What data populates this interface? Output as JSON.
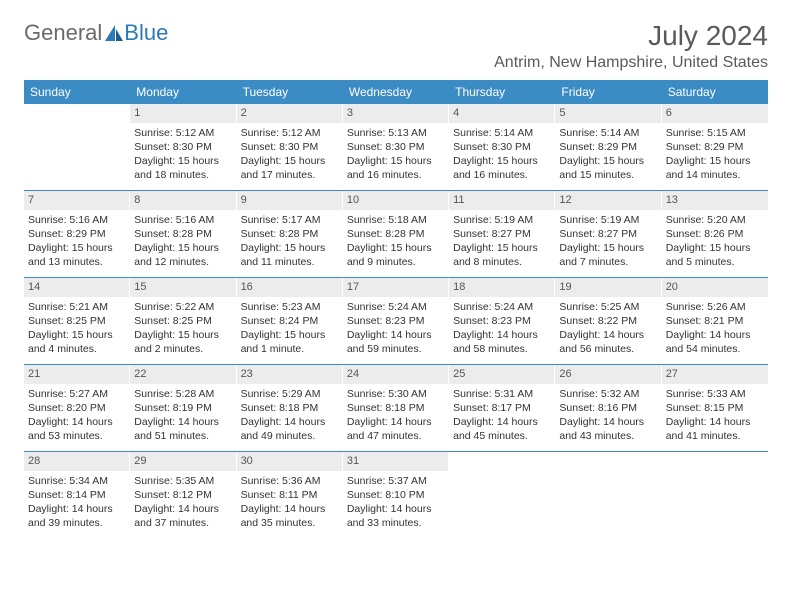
{
  "logo": {
    "text_a": "General",
    "text_b": "Blue"
  },
  "title": "July 2024",
  "location": "Antrim, New Hampshire, United States",
  "colors": {
    "header_bg": "#3b8bc4",
    "header_text": "#ffffff",
    "daynum_bg": "#ececec",
    "week_border": "#3b8bc4",
    "body_text": "#333333",
    "logo_gray": "#6a6a6a",
    "logo_blue": "#2a7ab8"
  },
  "day_names": [
    "Sunday",
    "Monday",
    "Tuesday",
    "Wednesday",
    "Thursday",
    "Friday",
    "Saturday"
  ],
  "weeks": [
    [
      {
        "n": "",
        "sr": "",
        "ss": "",
        "dl": ""
      },
      {
        "n": "1",
        "sr": "Sunrise: 5:12 AM",
        "ss": "Sunset: 8:30 PM",
        "dl": "Daylight: 15 hours and 18 minutes."
      },
      {
        "n": "2",
        "sr": "Sunrise: 5:12 AM",
        "ss": "Sunset: 8:30 PM",
        "dl": "Daylight: 15 hours and 17 minutes."
      },
      {
        "n": "3",
        "sr": "Sunrise: 5:13 AM",
        "ss": "Sunset: 8:30 PM",
        "dl": "Daylight: 15 hours and 16 minutes."
      },
      {
        "n": "4",
        "sr": "Sunrise: 5:14 AM",
        "ss": "Sunset: 8:30 PM",
        "dl": "Daylight: 15 hours and 16 minutes."
      },
      {
        "n": "5",
        "sr": "Sunrise: 5:14 AM",
        "ss": "Sunset: 8:29 PM",
        "dl": "Daylight: 15 hours and 15 minutes."
      },
      {
        "n": "6",
        "sr": "Sunrise: 5:15 AM",
        "ss": "Sunset: 8:29 PM",
        "dl": "Daylight: 15 hours and 14 minutes."
      }
    ],
    [
      {
        "n": "7",
        "sr": "Sunrise: 5:16 AM",
        "ss": "Sunset: 8:29 PM",
        "dl": "Daylight: 15 hours and 13 minutes."
      },
      {
        "n": "8",
        "sr": "Sunrise: 5:16 AM",
        "ss": "Sunset: 8:28 PM",
        "dl": "Daylight: 15 hours and 12 minutes."
      },
      {
        "n": "9",
        "sr": "Sunrise: 5:17 AM",
        "ss": "Sunset: 8:28 PM",
        "dl": "Daylight: 15 hours and 11 minutes."
      },
      {
        "n": "10",
        "sr": "Sunrise: 5:18 AM",
        "ss": "Sunset: 8:28 PM",
        "dl": "Daylight: 15 hours and 9 minutes."
      },
      {
        "n": "11",
        "sr": "Sunrise: 5:19 AM",
        "ss": "Sunset: 8:27 PM",
        "dl": "Daylight: 15 hours and 8 minutes."
      },
      {
        "n": "12",
        "sr": "Sunrise: 5:19 AM",
        "ss": "Sunset: 8:27 PM",
        "dl": "Daylight: 15 hours and 7 minutes."
      },
      {
        "n": "13",
        "sr": "Sunrise: 5:20 AM",
        "ss": "Sunset: 8:26 PM",
        "dl": "Daylight: 15 hours and 5 minutes."
      }
    ],
    [
      {
        "n": "14",
        "sr": "Sunrise: 5:21 AM",
        "ss": "Sunset: 8:25 PM",
        "dl": "Daylight: 15 hours and 4 minutes."
      },
      {
        "n": "15",
        "sr": "Sunrise: 5:22 AM",
        "ss": "Sunset: 8:25 PM",
        "dl": "Daylight: 15 hours and 2 minutes."
      },
      {
        "n": "16",
        "sr": "Sunrise: 5:23 AM",
        "ss": "Sunset: 8:24 PM",
        "dl": "Daylight: 15 hours and 1 minute."
      },
      {
        "n": "17",
        "sr": "Sunrise: 5:24 AM",
        "ss": "Sunset: 8:23 PM",
        "dl": "Daylight: 14 hours and 59 minutes."
      },
      {
        "n": "18",
        "sr": "Sunrise: 5:24 AM",
        "ss": "Sunset: 8:23 PM",
        "dl": "Daylight: 14 hours and 58 minutes."
      },
      {
        "n": "19",
        "sr": "Sunrise: 5:25 AM",
        "ss": "Sunset: 8:22 PM",
        "dl": "Daylight: 14 hours and 56 minutes."
      },
      {
        "n": "20",
        "sr": "Sunrise: 5:26 AM",
        "ss": "Sunset: 8:21 PM",
        "dl": "Daylight: 14 hours and 54 minutes."
      }
    ],
    [
      {
        "n": "21",
        "sr": "Sunrise: 5:27 AM",
        "ss": "Sunset: 8:20 PM",
        "dl": "Daylight: 14 hours and 53 minutes."
      },
      {
        "n": "22",
        "sr": "Sunrise: 5:28 AM",
        "ss": "Sunset: 8:19 PM",
        "dl": "Daylight: 14 hours and 51 minutes."
      },
      {
        "n": "23",
        "sr": "Sunrise: 5:29 AM",
        "ss": "Sunset: 8:18 PM",
        "dl": "Daylight: 14 hours and 49 minutes."
      },
      {
        "n": "24",
        "sr": "Sunrise: 5:30 AM",
        "ss": "Sunset: 8:18 PM",
        "dl": "Daylight: 14 hours and 47 minutes."
      },
      {
        "n": "25",
        "sr": "Sunrise: 5:31 AM",
        "ss": "Sunset: 8:17 PM",
        "dl": "Daylight: 14 hours and 45 minutes."
      },
      {
        "n": "26",
        "sr": "Sunrise: 5:32 AM",
        "ss": "Sunset: 8:16 PM",
        "dl": "Daylight: 14 hours and 43 minutes."
      },
      {
        "n": "27",
        "sr": "Sunrise: 5:33 AM",
        "ss": "Sunset: 8:15 PM",
        "dl": "Daylight: 14 hours and 41 minutes."
      }
    ],
    [
      {
        "n": "28",
        "sr": "Sunrise: 5:34 AM",
        "ss": "Sunset: 8:14 PM",
        "dl": "Daylight: 14 hours and 39 minutes."
      },
      {
        "n": "29",
        "sr": "Sunrise: 5:35 AM",
        "ss": "Sunset: 8:12 PM",
        "dl": "Daylight: 14 hours and 37 minutes."
      },
      {
        "n": "30",
        "sr": "Sunrise: 5:36 AM",
        "ss": "Sunset: 8:11 PM",
        "dl": "Daylight: 14 hours and 35 minutes."
      },
      {
        "n": "31",
        "sr": "Sunrise: 5:37 AM",
        "ss": "Sunset: 8:10 PM",
        "dl": "Daylight: 14 hours and 33 minutes."
      },
      {
        "n": "",
        "sr": "",
        "ss": "",
        "dl": ""
      },
      {
        "n": "",
        "sr": "",
        "ss": "",
        "dl": ""
      },
      {
        "n": "",
        "sr": "",
        "ss": "",
        "dl": ""
      }
    ]
  ]
}
